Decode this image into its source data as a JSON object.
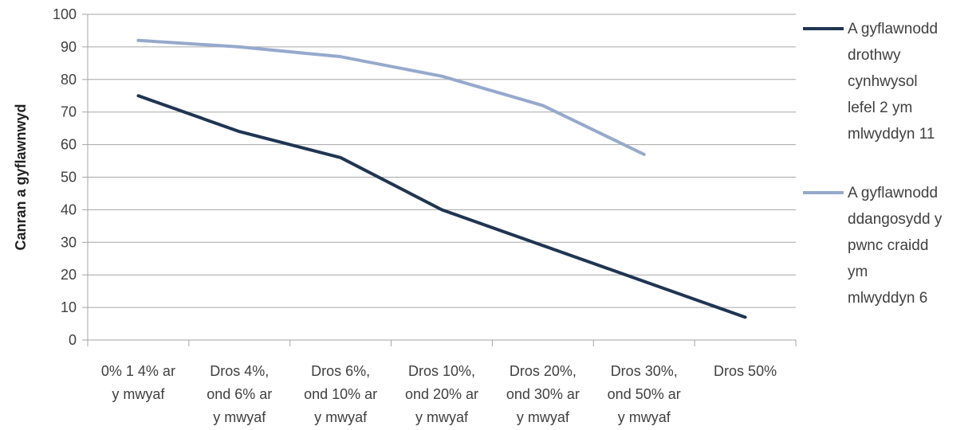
{
  "chart_data": {
    "type": "line",
    "ylabel": "Canran a gyflawnwyd",
    "xlabel": "",
    "ylim": [
      0,
      100
    ],
    "yticks": [
      0,
      10,
      20,
      30,
      40,
      50,
      60,
      70,
      80,
      90,
      100
    ],
    "grid": true,
    "legend_position": "right",
    "categories": [
      [
        "0% 1 4% ar",
        "y mwyaf"
      ],
      [
        "Dros 4%,",
        "ond 6% ar",
        "y mwyaf"
      ],
      [
        "Dros 6%,",
        "ond 10% ar",
        "y mwyaf"
      ],
      [
        "Dros 10%,",
        "ond 20% ar",
        "y mwyaf"
      ],
      [
        "Dros 20%,",
        "ond 30% ar",
        "y mwyaf"
      ],
      [
        "Dros 30%,",
        "ond 50% ar",
        "y mwyaf"
      ],
      [
        "Dros 50%"
      ]
    ],
    "series": [
      {
        "name": [
          "A gyflawnodd",
          "drothwy",
          "cynhwysol",
          "lefel 2 ym",
          "mlwyddyn 11"
        ],
        "color": "#1f3552",
        "values": [
          75,
          64,
          56,
          40,
          29,
          18,
          7
        ]
      },
      {
        "name": [
          "A gyflawnodd",
          "ddangosydd y",
          "pwnc craidd",
          "ym",
          "mlwyddyn 6"
        ],
        "color": "#96a9cc",
        "values": [
          92,
          90,
          87,
          81,
          72,
          57,
          null
        ]
      }
    ]
  }
}
